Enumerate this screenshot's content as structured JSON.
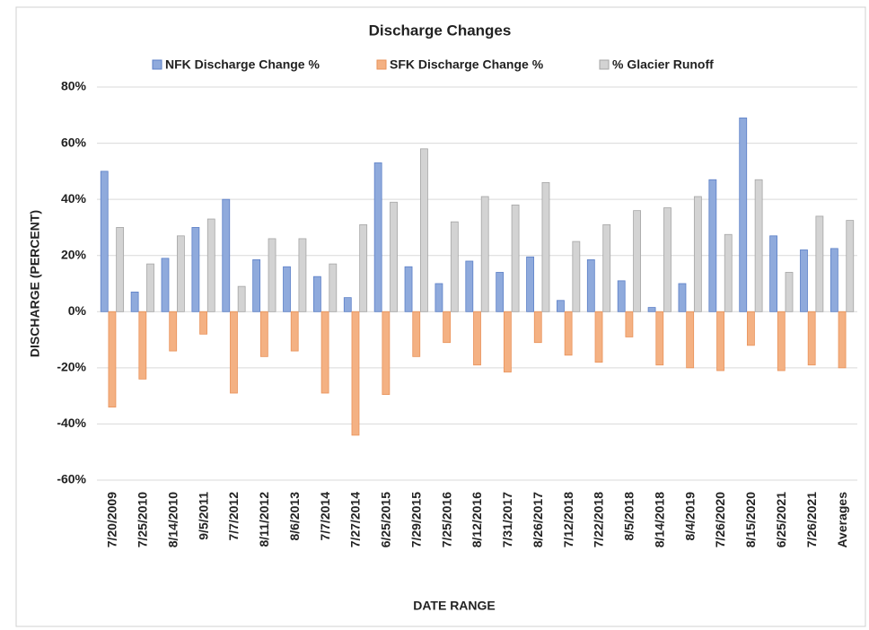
{
  "chart_data": {
    "type": "bar",
    "title": "Discharge  Changes",
    "x_label": "DATE RANGE",
    "y_label": "DISCHARGE (PERCENT)",
    "categories": [
      "7/20/2009",
      "7/25/2010",
      "8/14/2010",
      "9/5/2011",
      "7/7/2012",
      "8/11/2012",
      "8/6/2013",
      "7/7/2014",
      "7/27/2014",
      "6/25/2015",
      "7/29/2015",
      "7/25/2016",
      "8/12/2016",
      "7/31/2017",
      "8/26/2017",
      "7/12/2018",
      "7/22/2018",
      "8/5/2018",
      "8/14/2018",
      "8/4/2019",
      "7/26/2020",
      "8/15/2020",
      "6/25/2021",
      "7/26/2021",
      "Averages"
    ],
    "series": [
      {
        "name": "NFK Discharge Change %",
        "color": "#8faadc",
        "stroke": "#5b7fc7",
        "values": [
          50,
          7,
          19,
          30,
          40,
          18.5,
          16,
          12.5,
          5,
          53,
          16,
          10,
          18,
          14,
          19.5,
          4,
          18.5,
          11,
          1.5,
          10,
          47,
          69,
          27,
          22,
          22.5
        ]
      },
      {
        "name": "SFK Discharge Change %",
        "color": "#f4b183",
        "stroke": "#e9925a",
        "values": [
          -34,
          -24,
          -14,
          -8,
          -29,
          -16,
          -14,
          -29,
          -44,
          -29.5,
          -16,
          -11,
          -19,
          -21.5,
          -11,
          -15.5,
          -18,
          -9,
          -19,
          -20,
          -21,
          -12,
          -21,
          -19,
          -20
        ]
      },
      {
        "name": "% Glacier Runoff",
        "color": "#d3d3d3",
        "stroke": "#a5a5a5",
        "values": [
          30,
          17,
          27,
          33,
          9,
          26,
          26,
          17,
          31,
          39,
          58,
          32,
          41,
          38,
          46,
          25,
          31,
          36,
          37,
          41,
          27.5,
          47,
          14,
          34,
          32.5
        ]
      }
    ],
    "ylim": [
      -60,
      80
    ],
    "yticks": [
      {
        "value": -60,
        "label": "-60%"
      },
      {
        "value": -40,
        "label": "-40%"
      },
      {
        "value": -20,
        "label": "-20%"
      },
      {
        "value": 0,
        "label": "0%"
      },
      {
        "value": 20,
        "label": "20%"
      },
      {
        "value": 40,
        "label": "40%"
      },
      {
        "value": 60,
        "label": "60%"
      },
      {
        "value": 80,
        "label": "80%"
      }
    ],
    "grid": true
  }
}
